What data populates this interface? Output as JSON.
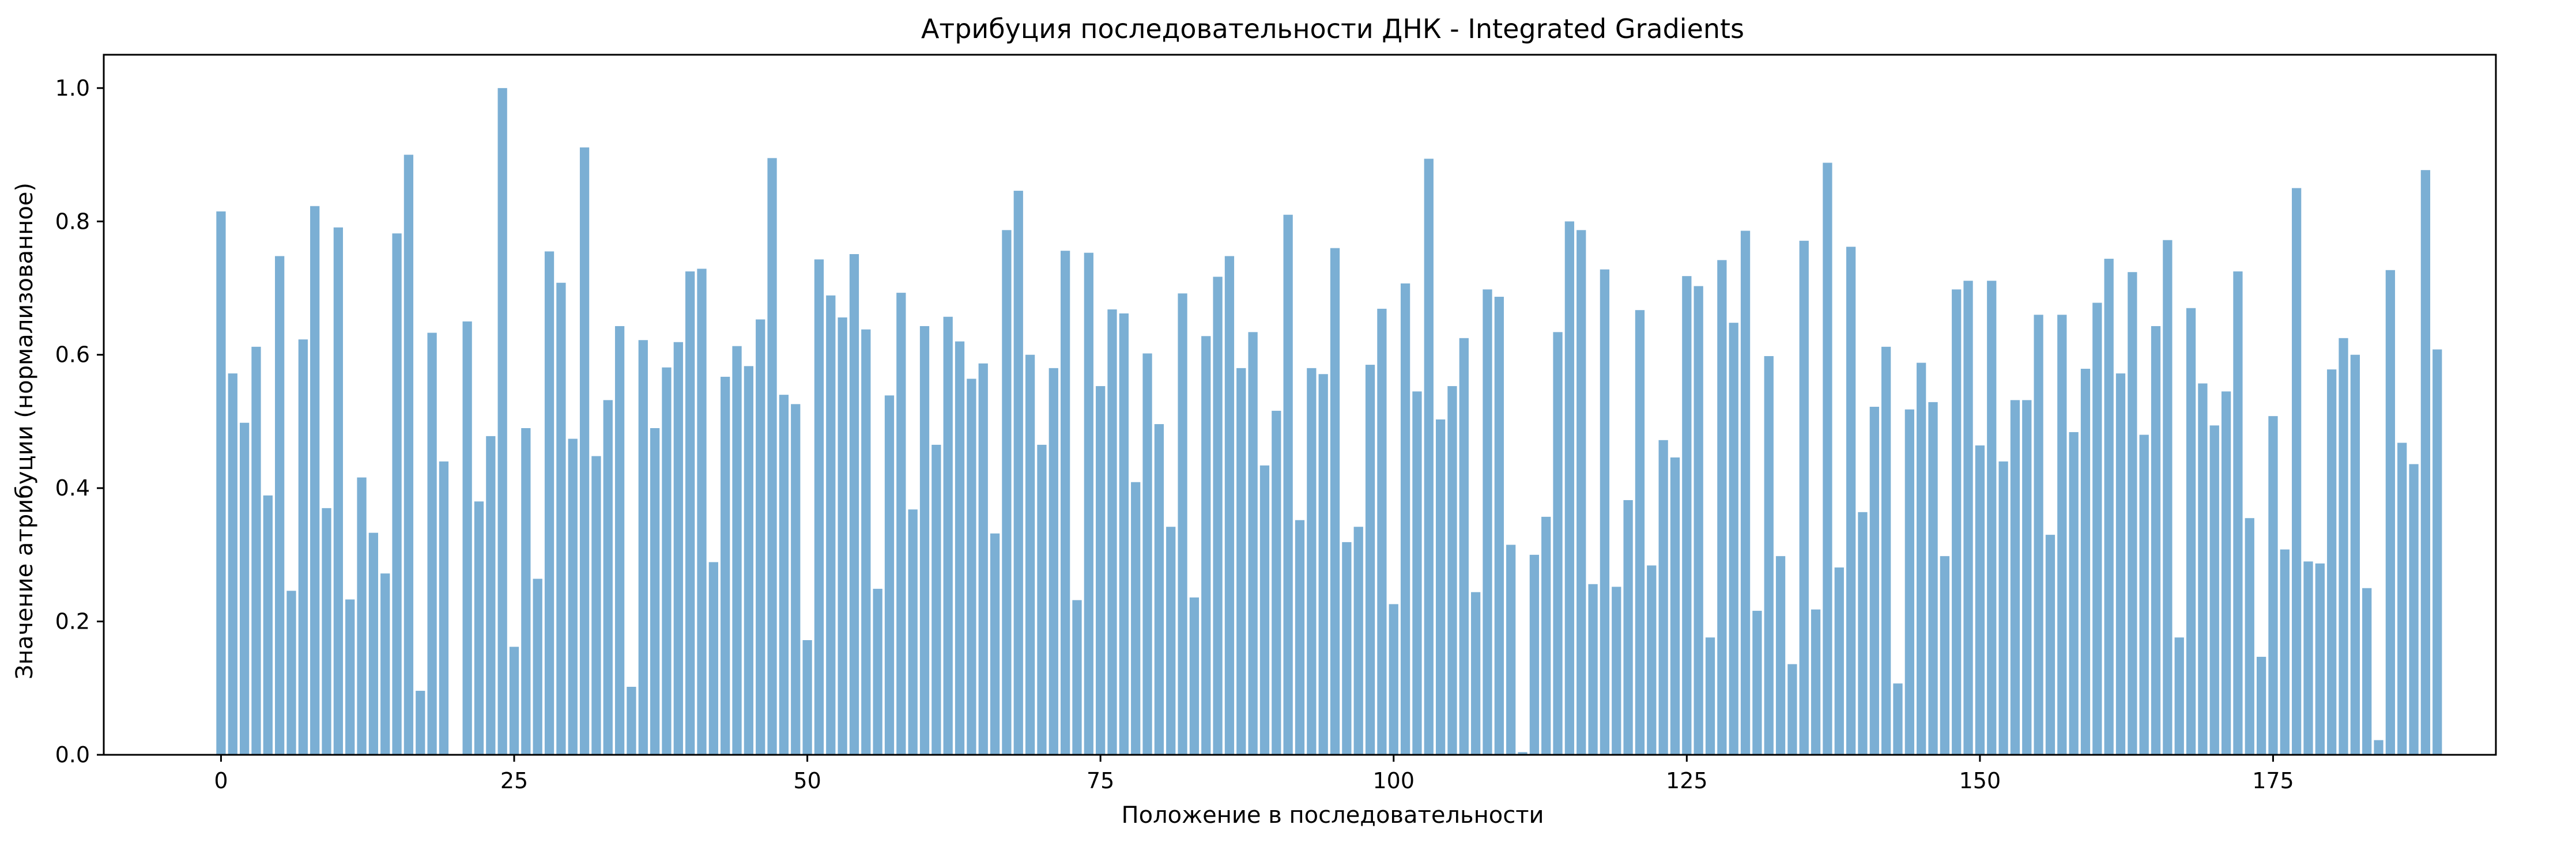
{
  "chart_data": {
    "type": "bar",
    "title": "Атрибуция последовательности ДНК - Integrated Gradients",
    "xlabel": "Положение в последовательности",
    "ylabel": "Значение атрибуции (нормализованное)",
    "xlim": [
      -10,
      194
    ],
    "ylim": [
      0,
      1.05
    ],
    "xticks": [
      0,
      25,
      50,
      75,
      100,
      125,
      150,
      175
    ],
    "yticks": [
      "0.0",
      "0.2",
      "0.4",
      "0.6",
      "0.8",
      "1.0"
    ],
    "grid": false,
    "bar_color": "#7bafd4",
    "x_start": 0,
    "values": [
      0.815,
      0.572,
      0.498,
      0.612,
      0.389,
      0.748,
      0.246,
      0.623,
      0.823,
      0.37,
      0.791,
      0.233,
      0.416,
      0.333,
      0.272,
      0.782,
      0.9,
      0.096,
      0.633,
      0.44,
      0.0,
      0.65,
      0.38,
      0.478,
      1.0,
      0.162,
      0.49,
      0.264,
      0.755,
      0.708,
      0.474,
      0.911,
      0.448,
      0.532,
      0.643,
      0.102,
      0.622,
      0.49,
      0.581,
      0.619,
      0.725,
      0.729,
      0.289,
      0.567,
      0.613,
      0.583,
      0.653,
      0.895,
      0.54,
      0.526,
      0.172,
      0.743,
      0.689,
      0.656,
      0.751,
      0.638,
      0.249,
      0.539,
      0.693,
      0.368,
      0.643,
      0.465,
      0.657,
      0.62,
      0.564,
      0.587,
      0.332,
      0.787,
      0.846,
      0.6,
      0.465,
      0.58,
      0.756,
      0.232,
      0.753,
      0.553,
      0.668,
      0.662,
      0.409,
      0.602,
      0.496,
      0.342,
      0.692,
      0.236,
      0.628,
      0.717,
      0.748,
      0.58,
      0.634,
      0.434,
      0.516,
      0.81,
      0.352,
      0.58,
      0.571,
      0.76,
      0.319,
      0.342,
      0.585,
      0.669,
      0.226,
      0.707,
      0.545,
      0.894,
      0.503,
      0.553,
      0.625,
      0.244,
      0.698,
      0.687,
      0.315,
      0.004,
      0.3,
      0.357,
      0.634,
      0.8,
      0.787,
      0.256,
      0.728,
      0.252,
      0.382,
      0.667,
      0.284,
      0.472,
      0.446,
      0.718,
      0.703,
      0.176,
      0.742,
      0.648,
      0.786,
      0.216,
      0.598,
      0.298,
      0.136,
      0.771,
      0.218,
      0.888,
      0.281,
      0.762,
      0.364,
      0.522,
      0.612,
      0.107,
      0.518,
      0.588,
      0.529,
      0.298,
      0.698,
      0.711,
      0.464,
      0.711,
      0.44,
      0.532,
      0.532,
      0.66,
      0.33,
      0.66,
      0.484,
      0.579,
      0.678,
      0.744,
      0.572,
      0.724,
      0.48,
      0.643,
      0.772,
      0.176,
      0.67,
      0.557,
      0.494,
      0.545,
      0.725,
      0.355,
      0.147,
      0.508,
      0.308,
      0.85,
      0.29,
      0.287,
      0.578,
      0.625,
      0.6,
      0.25,
      0.022,
      0.727,
      0.468,
      0.436,
      0.877,
      0.608
    ]
  }
}
